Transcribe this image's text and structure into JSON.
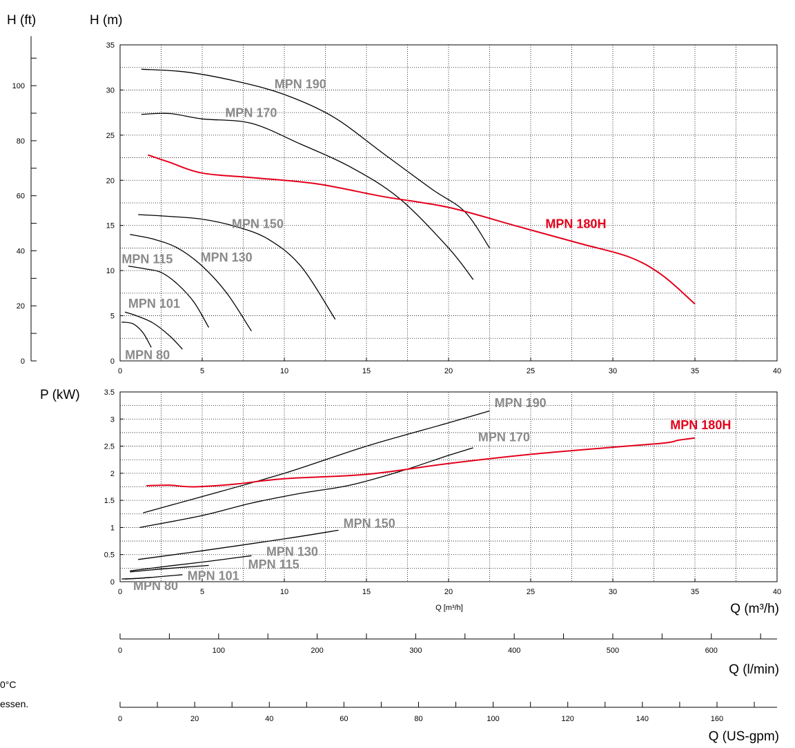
{
  "colors": {
    "black_series": "#000000",
    "highlight": "#e3001b",
    "label_gray": "#8a8a8a",
    "grid": "#000000"
  },
  "axis_labels": {
    "h_ft": "H (ft)",
    "h_m": "H (m)",
    "p_kw": "P (kW)",
    "q_m3h_small": "Q [m³/h]",
    "q_m3h": "Q (m³/h)",
    "q_lmin": "Q (l/min)",
    "q_usgpm": "Q (US-gpm)"
  },
  "side_note": {
    "line1": "0°C",
    "line2": "essen."
  },
  "chart_data": [
    {
      "type": "line",
      "panel": "head",
      "xlabel": "Q (m³/h)",
      "ylabel": "H (m)",
      "xlim": [
        0,
        40
      ],
      "ylim": [
        0,
        35
      ],
      "x_ticks": [
        0,
        5,
        10,
        15,
        20,
        25,
        30,
        35,
        40
      ],
      "y_ticks": [
        0,
        5,
        10,
        15,
        20,
        25,
        30,
        35
      ],
      "secondary_y": {
        "label": "H (ft)",
        "ticks": [
          0,
          20,
          40,
          60,
          80,
          100
        ]
      },
      "grid": true,
      "series": [
        {
          "name": "MPN 190",
          "color": "#000000",
          "x": [
            1.3,
            4,
            7,
            10,
            13,
            16,
            19,
            21,
            22.5
          ],
          "y": [
            32.3,
            32.0,
            31.0,
            29.5,
            27.0,
            23.0,
            19.0,
            16.5,
            12.5
          ]
        },
        {
          "name": "MPN 170",
          "color": "#000000",
          "x": [
            1.3,
            3,
            5,
            8,
            11,
            14,
            17,
            20,
            21.5
          ],
          "y": [
            27.3,
            27.4,
            26.8,
            26.3,
            24.0,
            21.5,
            18.0,
            12.5,
            9.0
          ]
        },
        {
          "name": "MPN 180H",
          "color": "#e3001b",
          "x": [
            1.7,
            3,
            5,
            8,
            12,
            16,
            20,
            24,
            28,
            31,
            33,
            35
          ],
          "y": [
            22.8,
            22.0,
            20.8,
            20.3,
            19.6,
            18.2,
            17.0,
            15.0,
            13.0,
            11.5,
            9.5,
            6.3
          ]
        },
        {
          "name": "MPN 150",
          "color": "#000000",
          "x": [
            1.1,
            3,
            5,
            7,
            9,
            11,
            13.1
          ],
          "y": [
            16.2,
            16.0,
            15.7,
            14.9,
            13.5,
            10.5,
            4.6
          ]
        },
        {
          "name": "MPN 130",
          "color": "#000000",
          "x": [
            0.6,
            2,
            3.5,
            5,
            6.5,
            8.0
          ],
          "y": [
            14.0,
            13.5,
            12.5,
            10.5,
            7.5,
            3.3
          ]
        },
        {
          "name": "MPN 115",
          "color": "#000000",
          "x": [
            0.5,
            1.5,
            2.5,
            3.5,
            4.5,
            5.4
          ],
          "y": [
            10.5,
            10.2,
            9.8,
            8.5,
            6.5,
            3.7
          ]
        },
        {
          "name": "MPN 101",
          "color": "#000000",
          "x": [
            0.3,
            1,
            2,
            3,
            3.8
          ],
          "y": [
            5.4,
            5.0,
            4.2,
            2.8,
            1.3
          ]
        },
        {
          "name": "MPN 80",
          "color": "#000000",
          "x": [
            0.1,
            0.8,
            1.4,
            1.9
          ],
          "y": [
            4.3,
            4.1,
            3.1,
            1.5
          ]
        }
      ],
      "labels": [
        {
          "text": "MPN 190",
          "x": 9.4,
          "y": 30.2,
          "color": "#8a8a8a"
        },
        {
          "text": "MPN 170",
          "x": 6.4,
          "y": 27.0,
          "color": "#8a8a8a"
        },
        {
          "text": "MPN 180H",
          "x": 25.9,
          "y": 14.7,
          "color": "#e3001b"
        },
        {
          "text": "MPN 150",
          "x": 6.8,
          "y": 14.7,
          "color": "#8a8a8a"
        },
        {
          "text": "MPN 130",
          "x": 4.9,
          "y": 11.0,
          "color": "#8a8a8a"
        },
        {
          "text": "MPN 115",
          "x": 0.1,
          "y": 10.8,
          "color": "#8a8a8a"
        },
        {
          "text": "MPN 101",
          "x": 0.5,
          "y": 5.9,
          "color": "#8a8a8a"
        },
        {
          "text": "MPN 80",
          "x": 0.3,
          "y": 0.2,
          "color": "#8a8a8a"
        }
      ]
    },
    {
      "type": "line",
      "panel": "power",
      "xlabel": "Q [m³/h]",
      "ylabel": "P (kW)",
      "xlim": [
        0,
        40
      ],
      "ylim": [
        0,
        3.5
      ],
      "x_ticks": [
        0,
        5,
        10,
        15,
        20,
        25,
        30,
        35,
        40
      ],
      "y_ticks": [
        0,
        0.5,
        1,
        1.5,
        2,
        2.5,
        3,
        3.5
      ],
      "grid": true,
      "series": [
        {
          "name": "MPN 190",
          "color": "#000000",
          "x": [
            1.4,
            5,
            10,
            15,
            20,
            22.5
          ],
          "y": [
            1.27,
            1.57,
            2.0,
            2.5,
            2.93,
            3.15
          ]
        },
        {
          "name": "MPN 170",
          "color": "#000000",
          "x": [
            1.2,
            5,
            8,
            11,
            14,
            17,
            20,
            21.5
          ],
          "y": [
            1.0,
            1.22,
            1.45,
            1.63,
            1.78,
            2.03,
            2.33,
            2.47
          ]
        },
        {
          "name": "MPN 180H",
          "color": "#e3001b",
          "x": [
            1.6,
            3,
            4.5,
            7,
            10,
            15,
            20,
            25,
            30,
            33.2,
            34,
            35
          ],
          "y": [
            1.77,
            1.78,
            1.75,
            1.8,
            1.9,
            1.98,
            2.18,
            2.35,
            2.48,
            2.56,
            2.61,
            2.65
          ]
        },
        {
          "name": "MPN 150",
          "color": "#000000",
          "x": [
            1.1,
            5,
            10,
            13.3
          ],
          "y": [
            0.41,
            0.57,
            0.79,
            0.95
          ]
        },
        {
          "name": "MPN 130",
          "color": "#000000",
          "x": [
            0.6,
            3,
            5.5,
            8.0
          ],
          "y": [
            0.2,
            0.29,
            0.38,
            0.48
          ]
        },
        {
          "name": "MPN 115",
          "color": "#000000",
          "x": [
            0.6,
            2,
            4,
            5.4
          ],
          "y": [
            0.18,
            0.22,
            0.27,
            0.3
          ]
        },
        {
          "name": "MPN 101",
          "color": "#000000",
          "x": [
            0.3,
            1.5,
            3.8
          ],
          "y": [
            0.05,
            0.07,
            0.13
          ]
        },
        {
          "name": "MPN 80",
          "color": "#000000",
          "x": [
            0.1,
            1.0,
            1.9
          ],
          "y": [
            0.05,
            0.06,
            0.08
          ]
        }
      ],
      "labels": [
        {
          "text": "MPN 190",
          "x": 22.8,
          "y": 3.22,
          "color": "#8a8a8a"
        },
        {
          "text": "MPN 170",
          "x": 21.8,
          "y": 2.59,
          "color": "#8a8a8a"
        },
        {
          "text": "MPN 180H",
          "x": 33.5,
          "y": 2.81,
          "color": "#e3001b"
        },
        {
          "text": "MPN 150",
          "x": 13.6,
          "y": 1.0,
          "color": "#8a8a8a"
        },
        {
          "text": "MPN 130",
          "x": 8.9,
          "y": 0.48,
          "color": "#8a8a8a"
        },
        {
          "text": "MPN 115",
          "x": 7.8,
          "y": 0.24,
          "color": "#8a8a8a"
        },
        {
          "text": "MPN 101",
          "x": 4.1,
          "y": 0.03,
          "color": "#8a8a8a"
        },
        {
          "text": "MPN 80",
          "x": 0.8,
          "y": -0.15,
          "color": "#8a8a8a"
        }
      ]
    },
    {
      "type": "axis",
      "panel": "flow_lmin",
      "label": "Q (l/min)",
      "range": [
        0,
        666.7
      ],
      "ticks": [
        0,
        100,
        200,
        300,
        400,
        500,
        600
      ],
      "minor_step": 50
    },
    {
      "type": "axis",
      "panel": "flow_usgpm",
      "label": "Q (US-gpm)",
      "range": [
        0,
        176.1
      ],
      "ticks": [
        0,
        20,
        40,
        60,
        80,
        100,
        120,
        140,
        160
      ],
      "minor_step": 10
    }
  ]
}
